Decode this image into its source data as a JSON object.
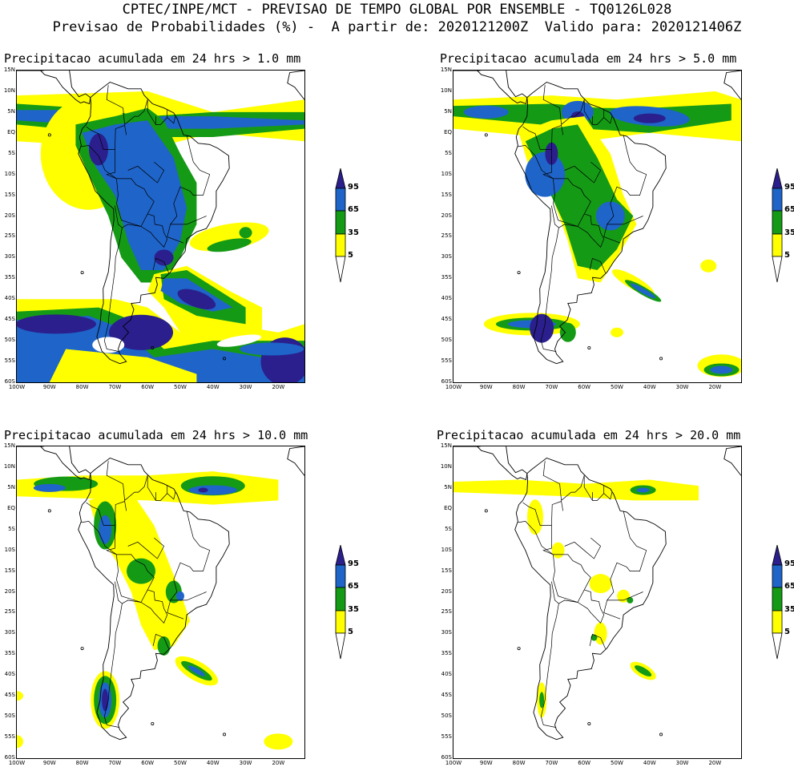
{
  "header": {
    "line1": "CPTEC/INPE/MCT - PREVISAO DE TEMPO GLOBAL POR ENSEMBLE - TQ0126L028",
    "line2": "Previsao de Probabilidades (%) -  A partir de: 2020121200Z  Valido para: 2020121406Z"
  },
  "panels": [
    {
      "title": "Precipitacao acumulada em 24 hrs > 1.0 mm"
    },
    {
      "title": "Precipitacao acumulada em 24 hrs > 5.0 mm"
    },
    {
      "title": "Precipitacao acumulada em 24 hrs > 10.0 mm"
    },
    {
      "title": "Precipitacao acumulada em 24 hrs > 20.0 mm"
    }
  ],
  "lat_labels": [
    "15N",
    "10N",
    "5N",
    "EQ",
    "5S",
    "10S",
    "15S",
    "20S",
    "25S",
    "30S",
    "35S",
    "40S",
    "45S",
    "50S",
    "55S",
    "60S"
  ],
  "lon_labels": [
    "100W",
    "90W",
    "80W",
    "70W",
    "60W",
    "50W",
    "40W",
    "30W",
    "20W"
  ],
  "colorbar": {
    "labels": [
      "95",
      "65",
      "35",
      "5"
    ],
    "colors": {
      "c95": "#2a1f8c",
      "c65": "#1f64c8",
      "c35": "#159a16",
      "c5": "#ffff00",
      "c0": "#ffffff"
    }
  }
}
